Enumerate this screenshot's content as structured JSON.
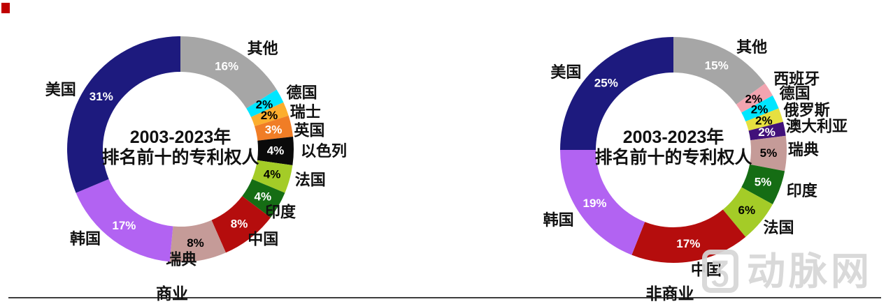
{
  "page": {
    "corner_mark_color": "#C00000",
    "watermark": {
      "logo_glyph": "Ʒ",
      "text": "动脉网"
    },
    "bottom_rule_color": "#3d3d3d"
  },
  "chart_data": [
    {
      "type": "pie",
      "variant": "donut",
      "title_line1": "2003-2023年",
      "title_line2": "排名前十的专利权人",
      "category_label": "商业",
      "start_angle_deg": 0,
      "direction": "clockwise",
      "slices": [
        {
          "label": "其他",
          "value": 16,
          "pct_label": "16%",
          "color": "#A6A6A6",
          "pct_text_color": "#FFFFFF"
        },
        {
          "label": "德国",
          "value": 2,
          "pct_label": "2%",
          "color": "#00E6FF",
          "pct_text_color": "#000000"
        },
        {
          "label": "瑞士",
          "value": 2,
          "pct_label": "2%",
          "color": "#FCAE2E",
          "pct_text_color": "#000000"
        },
        {
          "label": "英国",
          "value": 3,
          "pct_label": "3%",
          "color": "#F07D26",
          "pct_text_color": "#FFFFFF"
        },
        {
          "label": "以色列",
          "value": 4,
          "pct_label": "4%",
          "color": "#0A0A0A",
          "pct_text_color": "#FFFFFF"
        },
        {
          "label": "法国",
          "value": 4,
          "pct_label": "4%",
          "color": "#A4CC27",
          "pct_text_color": "#000000"
        },
        {
          "label": "印度",
          "value": 4,
          "pct_label": "4%",
          "color": "#156D14",
          "pct_text_color": "#FFFFFF"
        },
        {
          "label": "中国",
          "value": 8,
          "pct_label": "8%",
          "color": "#B50D0D",
          "pct_text_color": "#FFFFFF"
        },
        {
          "label": "瑞典",
          "value": 8,
          "pct_label": "8%",
          "color": "#C59B98",
          "pct_text_color": "#000000"
        },
        {
          "label": "韩国",
          "value": 17,
          "pct_label": "17%",
          "color": "#B263F2",
          "pct_text_color": "#FFFFFF"
        },
        {
          "label": "美国",
          "value": 31,
          "pct_label": "31%",
          "color": "#1D1A7E",
          "pct_text_color": "#FFFFFF"
        }
      ]
    },
    {
      "type": "pie",
      "variant": "donut",
      "title_line1": "2003-2023年",
      "title_line2": "排名前十的专利权人",
      "category_label": "非商业",
      "start_angle_deg": 0,
      "direction": "clockwise",
      "slices": [
        {
          "label": "其他",
          "value": 15,
          "pct_label": "15%",
          "color": "#A6A6A6",
          "pct_text_color": "#FFFFFF"
        },
        {
          "label": "西班牙",
          "value": 2,
          "pct_label": "2%",
          "color": "#F2A4B0",
          "pct_text_color": "#000000"
        },
        {
          "label": "德国",
          "value": 2,
          "pct_label": "2%",
          "color": "#00E6FF",
          "pct_text_color": "#000000"
        },
        {
          "label": "俄罗斯",
          "value": 2,
          "pct_label": "2%",
          "color": "#E6E040",
          "pct_text_color": "#000000"
        },
        {
          "label": "澳大利亚",
          "value": 2,
          "pct_label": "2%",
          "color": "#41117A",
          "pct_text_color": "#FFFFFF"
        },
        {
          "label": "瑞典",
          "value": 5,
          "pct_label": "5%",
          "color": "#C59B98",
          "pct_text_color": "#000000"
        },
        {
          "label": "印度",
          "value": 5,
          "pct_label": "5%",
          "color": "#156D14",
          "pct_text_color": "#FFFFFF"
        },
        {
          "label": "法国",
          "value": 6,
          "pct_label": "6%",
          "color": "#A4CC27",
          "pct_text_color": "#000000"
        },
        {
          "label": "中国",
          "value": 17,
          "pct_label": "17%",
          "color": "#B50D0D",
          "pct_text_color": "#FFFFFF"
        },
        {
          "label": "韩国",
          "value": 19,
          "pct_label": "19%",
          "color": "#B263F2",
          "pct_text_color": "#FFFFFF"
        },
        {
          "label": "美国",
          "value": 25,
          "pct_label": "25%",
          "color": "#1D1A7E",
          "pct_text_color": "#FFFFFF"
        }
      ]
    }
  ]
}
